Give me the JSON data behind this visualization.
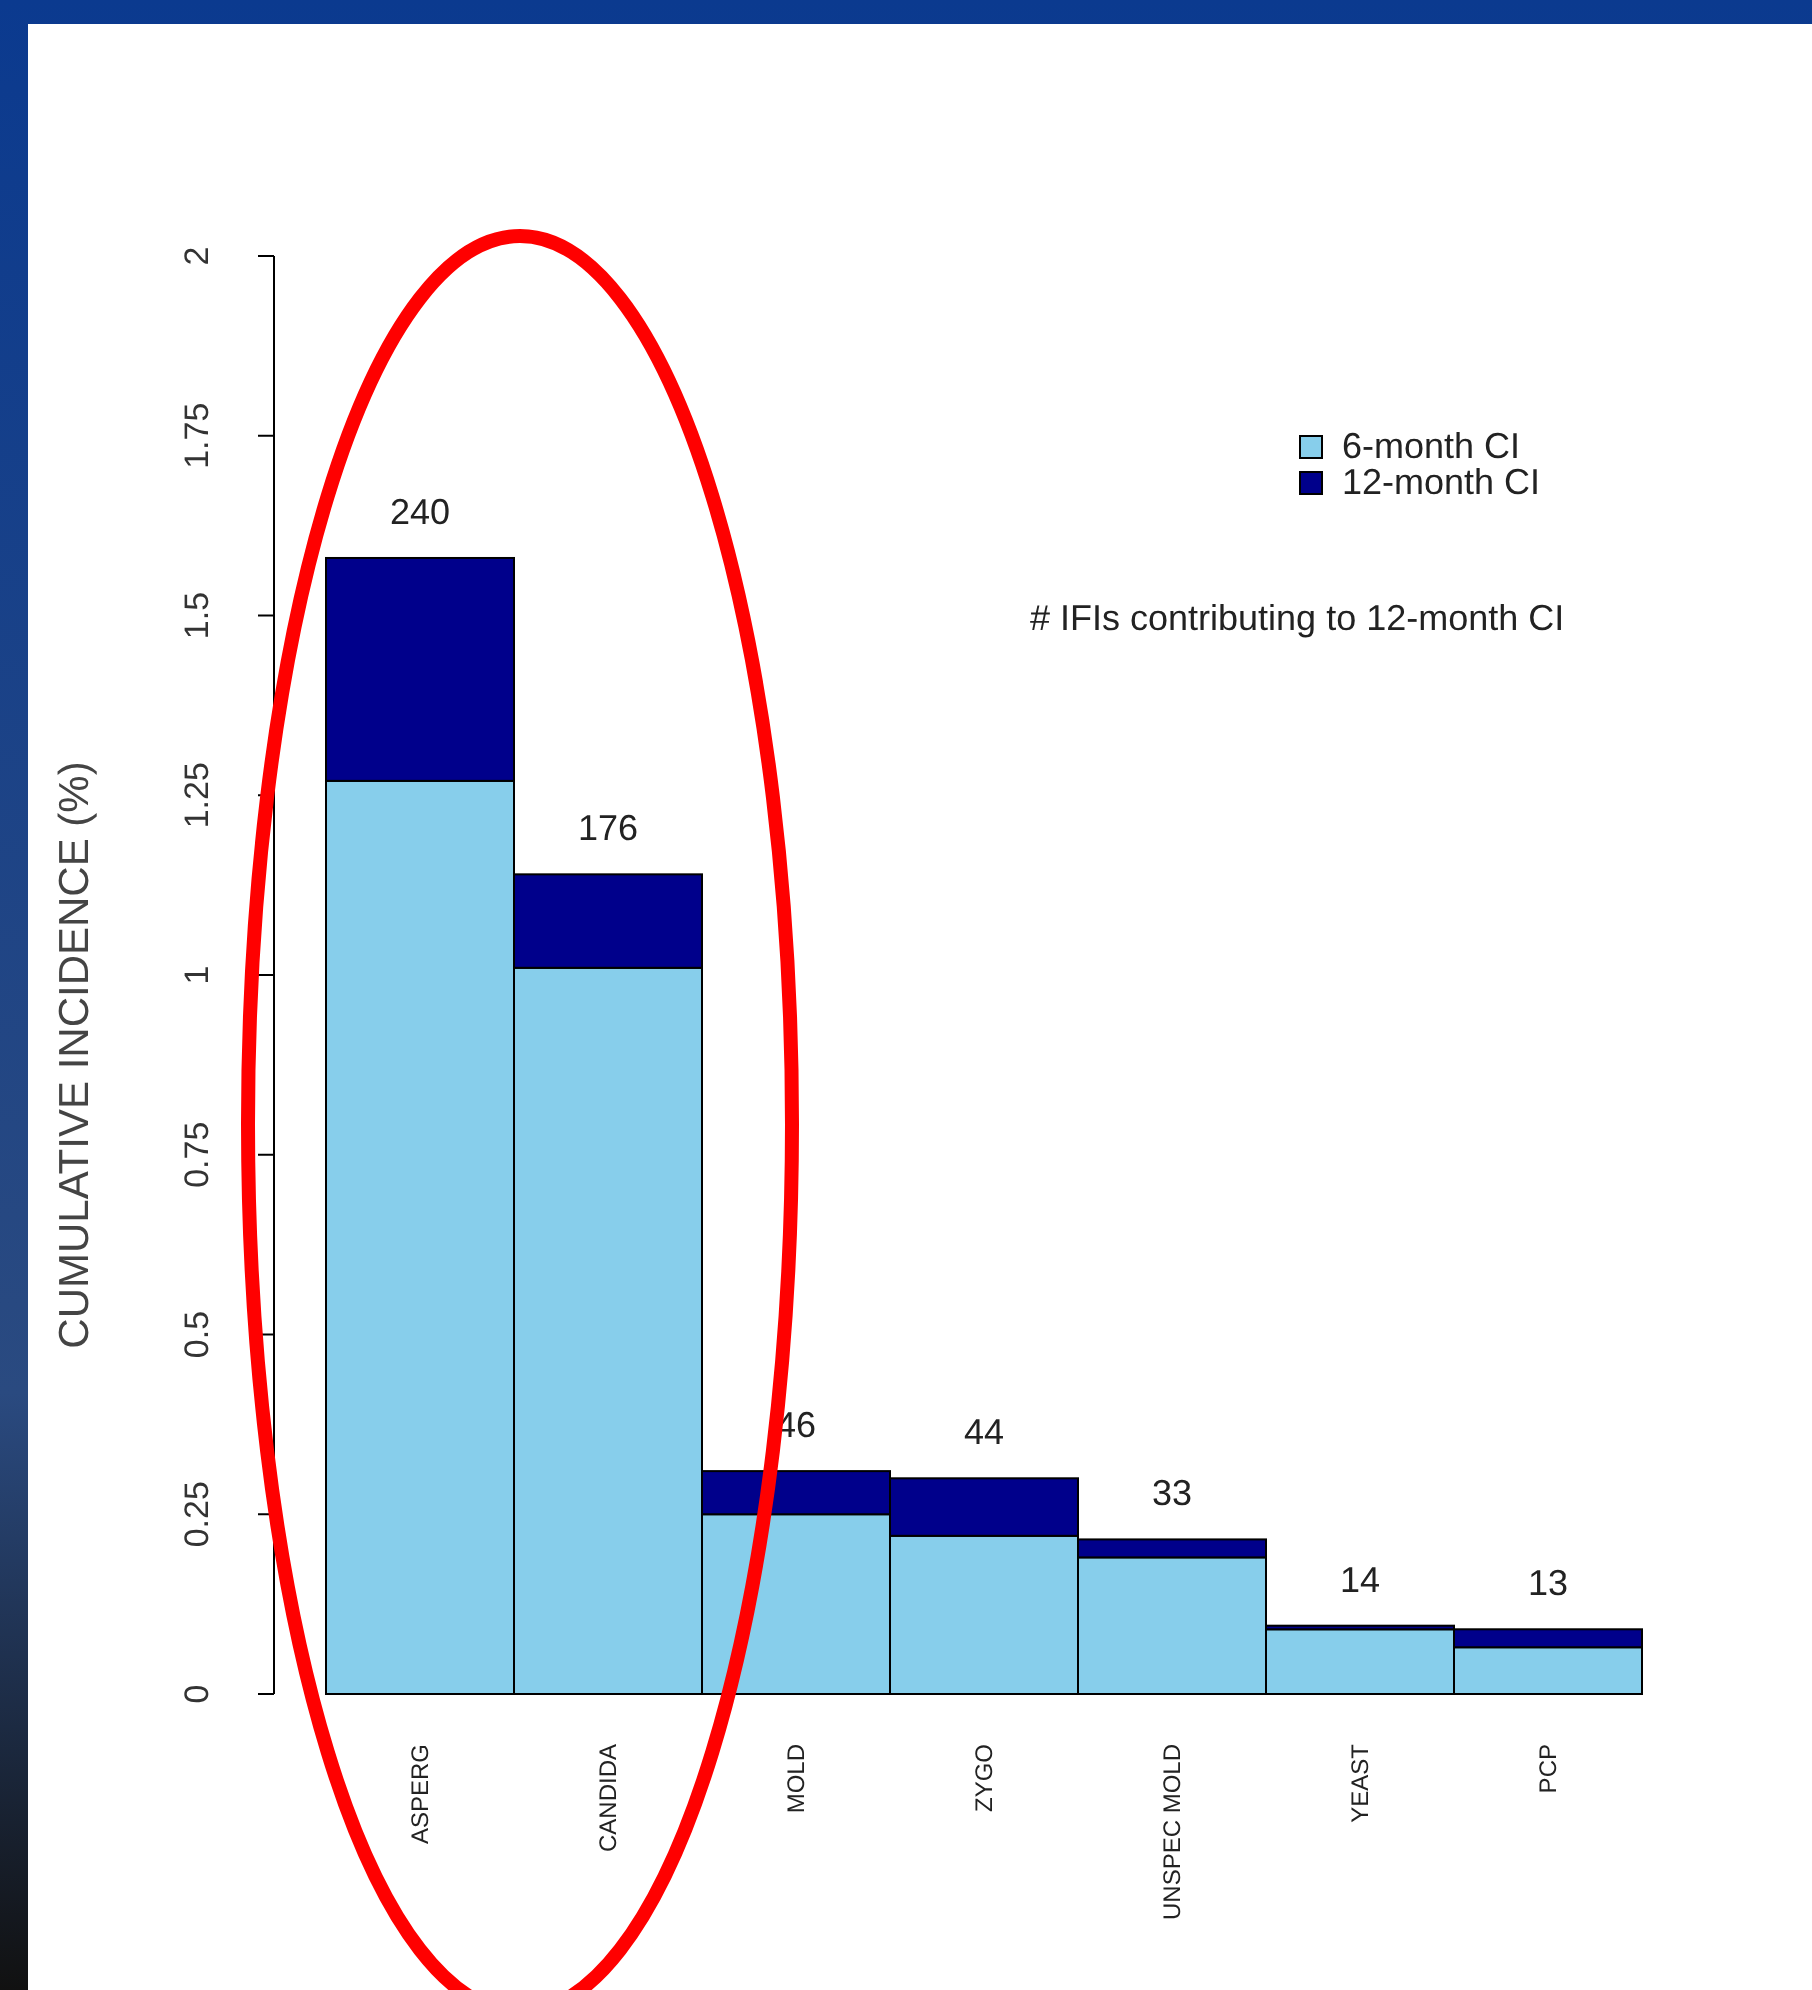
{
  "chart_data": {
    "type": "bar",
    "ylabel": "CUMULATIVE INCIDENCE (%)",
    "categories": [
      "ASPERG",
      "CANDIDA",
      "MOLD",
      "ZYGO",
      "UNSPEC MOLD",
      "YEAST",
      "PCP"
    ],
    "stacked": true,
    "series": [
      {
        "name": "6-month CI",
        "color": "#87ceeb",
        "values": [
          1.27,
          1.01,
          0.25,
          0.22,
          0.19,
          0.09,
          0.065
        ]
      },
      {
        "name": "12-month CI",
        "color": "#00008b",
        "values": [
          0.31,
          0.13,
          0.06,
          0.08,
          0.025,
          0.005,
          0.025
        ]
      }
    ],
    "ylim": [
      0,
      2
    ],
    "yticks": [
      0,
      0.25,
      0.5,
      0.75,
      1,
      1.25,
      1.5,
      1.75,
      2
    ],
    "legend": "top right",
    "annotations": [
      "# IFIs contributing to 12-month CI",
      {
        "text": "240",
        "x": "ASPERG",
        "y": 1.58
      },
      {
        "text": "176",
        "x": "CANDIDA",
        "y": 1.14
      },
      {
        "text": "46",
        "x": "MOLD",
        "y": 0.31
      },
      {
        "text": "44",
        "x": "ZYGO",
        "y": 0.3
      },
      {
        "text": "33",
        "x": "UNSPEC MOLD",
        "y": 0.215
      },
      {
        "text": "14",
        "x": "YEAST",
        "y": 0.095
      },
      {
        "text": "13",
        "x": "PCP",
        "y": 0.09
      }
    ]
  }
}
